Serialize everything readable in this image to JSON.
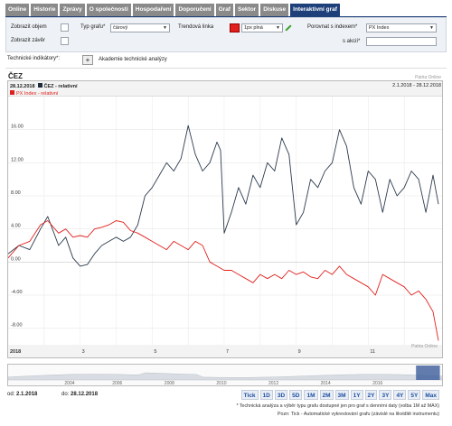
{
  "tabs": [
    {
      "label": "Online"
    },
    {
      "label": "Historie"
    },
    {
      "label": "Zprávy"
    },
    {
      "label": "O společnosti"
    },
    {
      "label": "Hospodaření"
    },
    {
      "label": "Doporučení"
    },
    {
      "label": "Graf"
    },
    {
      "label": "Sektor"
    },
    {
      "label": "Diskuse"
    },
    {
      "label": "Interaktivní graf",
      "active": true
    }
  ],
  "controls": {
    "show_volume": "Zobrazit objem",
    "show_close": "Zobrazit závěr",
    "chart_type_label": "Typ grafu*",
    "chart_type_value": "čárový",
    "trend_line_label": "Trendová linka",
    "trend_line_style": "1px plná",
    "trend_color": "#e0201c",
    "compare_index_label": "Porovnat s indexem*",
    "compare_index_value": "PX Index",
    "stock_label": "s akcií*",
    "stock_value": ""
  },
  "indicators": {
    "label": "Technické indikátory*:",
    "add_symbol": "+",
    "academy_link": "Akademie technické analýzy"
  },
  "chart_header": {
    "title": "ČEZ",
    "watermark": "Patria Online",
    "legend_date": "28.12.2018",
    "series1_name": "ČEZ - relativní",
    "series2_name": "PX Index - relativní",
    "date_range": "2.1.2018 - 28.12.2018"
  },
  "chart_data": {
    "type": "line",
    "ylim": [
      -10,
      20
    ],
    "yticks": [
      "16.00",
      "12.00",
      "8.00",
      "4.00",
      "0.00",
      "-4.00",
      "-8.00"
    ],
    "ytick_values": [
      16,
      12,
      8,
      4,
      0,
      -4,
      -8
    ],
    "xtick_labels": [
      "2018",
      "3",
      "5",
      "7",
      "9",
      "11"
    ],
    "xtick_positions": [
      0,
      2,
      4,
      6,
      8,
      10
    ],
    "x_count": 12,
    "series": [
      {
        "name": "ČEZ - relativní",
        "color": "#2b3a4d",
        "x": [
          0,
          0.3,
          0.6,
          0.9,
          1.1,
          1.4,
          1.6,
          1.8,
          2.0,
          2.2,
          2.4,
          2.6,
          2.8,
          3.0,
          3.2,
          3.4,
          3.6,
          3.8,
          4.0,
          4.2,
          4.4,
          4.6,
          4.8,
          5.0,
          5.2,
          5.4,
          5.6,
          5.8,
          5.9,
          6.0,
          6.2,
          6.4,
          6.6,
          6.8,
          7.0,
          7.2,
          7.4,
          7.6,
          7.8,
          8.0,
          8.2,
          8.4,
          8.6,
          8.8,
          9.0,
          9.2,
          9.4,
          9.6,
          9.8,
          10.0,
          10.2,
          10.4,
          10.6,
          10.8,
          11.0,
          11.2,
          11.4,
          11.6,
          11.8,
          11.95
        ],
        "y": [
          1,
          2,
          1.5,
          4,
          5.5,
          2,
          3,
          0.5,
          -0.5,
          -0.3,
          1,
          2,
          2.5,
          3,
          2.5,
          3,
          4.5,
          8,
          9,
          10.5,
          12,
          11,
          12.5,
          16.5,
          13,
          11,
          12,
          14.5,
          13.5,
          3.5,
          6,
          9,
          7,
          10.5,
          9,
          12,
          11,
          15,
          13,
          4.5,
          6,
          10,
          9,
          11,
          12,
          16,
          14,
          9,
          7,
          11,
          10,
          6,
          10,
          8,
          9,
          11,
          10,
          6,
          10.5,
          7
        ]
      },
      {
        "name": "PX Index - relativní",
        "color": "#e0201c",
        "x": [
          0,
          0.3,
          0.6,
          0.9,
          1.1,
          1.4,
          1.6,
          1.8,
          2.0,
          2.2,
          2.4,
          2.6,
          2.8,
          3.0,
          3.2,
          3.4,
          3.6,
          3.8,
          4.0,
          4.2,
          4.4,
          4.6,
          4.8,
          5.0,
          5.2,
          5.4,
          5.6,
          5.8,
          6.0,
          6.2,
          6.4,
          6.6,
          6.8,
          7.0,
          7.2,
          7.4,
          7.6,
          7.8,
          8.0,
          8.2,
          8.4,
          8.6,
          8.8,
          9.0,
          9.2,
          9.4,
          9.6,
          9.8,
          10.0,
          10.2,
          10.4,
          10.6,
          10.8,
          11.0,
          11.2,
          11.4,
          11.6,
          11.8,
          11.95
        ],
        "y": [
          0.5,
          2,
          2.5,
          4.5,
          5,
          3.5,
          4,
          3,
          3.2,
          3,
          4,
          4.2,
          4.5,
          5,
          4.8,
          3.8,
          3.5,
          3,
          2.5,
          2,
          1.5,
          2.5,
          2,
          1.5,
          2.5,
          2,
          0,
          -0.5,
          -1,
          -1,
          -1.5,
          -2,
          -2.5,
          -1.5,
          -2,
          -1.5,
          -2,
          -1,
          -1.5,
          -1.2,
          -1.8,
          -2,
          -1,
          -1.5,
          -0.5,
          -1.5,
          -2,
          -2.5,
          -3,
          -4,
          -1.5,
          -2,
          -2.5,
          -3,
          -4,
          -3.5,
          -4.5,
          -6,
          -9.5
        ]
      }
    ]
  },
  "navigator": {
    "years": [
      "2004",
      "2006",
      "2008",
      "2010",
      "2012",
      "2014",
      "2016"
    ],
    "year_positions": [
      0.13,
      0.24,
      0.36,
      0.48,
      0.6,
      0.72,
      0.84
    ],
    "selection_start": 0.94,
    "selection_end": 0.995
  },
  "footer": {
    "from_label": "od:",
    "from_value": "2.1.2018",
    "to_label": "do:",
    "to_value": "28.12.2018",
    "zoom_buttons": [
      "Tick",
      "1D",
      "3D",
      "5D",
      "1M",
      "2M",
      "3M",
      "1Y",
      "2Y",
      "3Y",
      "4Y",
      "5Y",
      "Max"
    ],
    "note1": "* Technická analýza a výběr typu grafu dostupné jen pro graf s denními daty (volba 1M až MAX)",
    "note2": "Pozn: Tick - Automatické vykreslování grafu (závislé na likviditě instrumentu)"
  }
}
